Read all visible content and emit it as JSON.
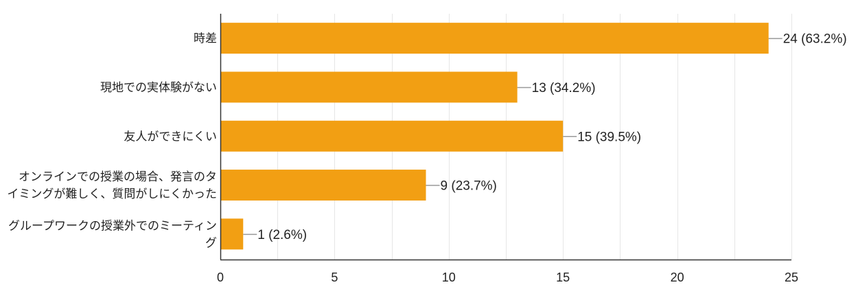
{
  "chart_data": {
    "type": "bar",
    "orientation": "horizontal",
    "title": "",
    "xlabel": "",
    "ylabel": "",
    "categories": [
      [
        "時差"
      ],
      [
        "現地での実体験がない"
      ],
      [
        "友人ができにくい"
      ],
      [
        "オンラインでの授業の場合、発言のタ",
        "イミングが難しく、質問がしにくかった"
      ],
      [
        "グループワークの授業外でのミーティン",
        "グ"
      ]
    ],
    "values": [
      24,
      13,
      15,
      9,
      1
    ],
    "data_labels": [
      "24 (63.2%)",
      "13 (34.2%)",
      "15 (39.5%)",
      "9 (23.7%)",
      "1 (2.6%)"
    ],
    "xlim": [
      0,
      25
    ],
    "xticks": [
      0,
      5,
      10,
      15,
      20,
      25
    ],
    "grid": true,
    "legend": "none",
    "colors": {
      "bar": "#f29f13",
      "grid": "#e6e6e6",
      "axis": "#333333",
      "leader": "#999999"
    }
  }
}
